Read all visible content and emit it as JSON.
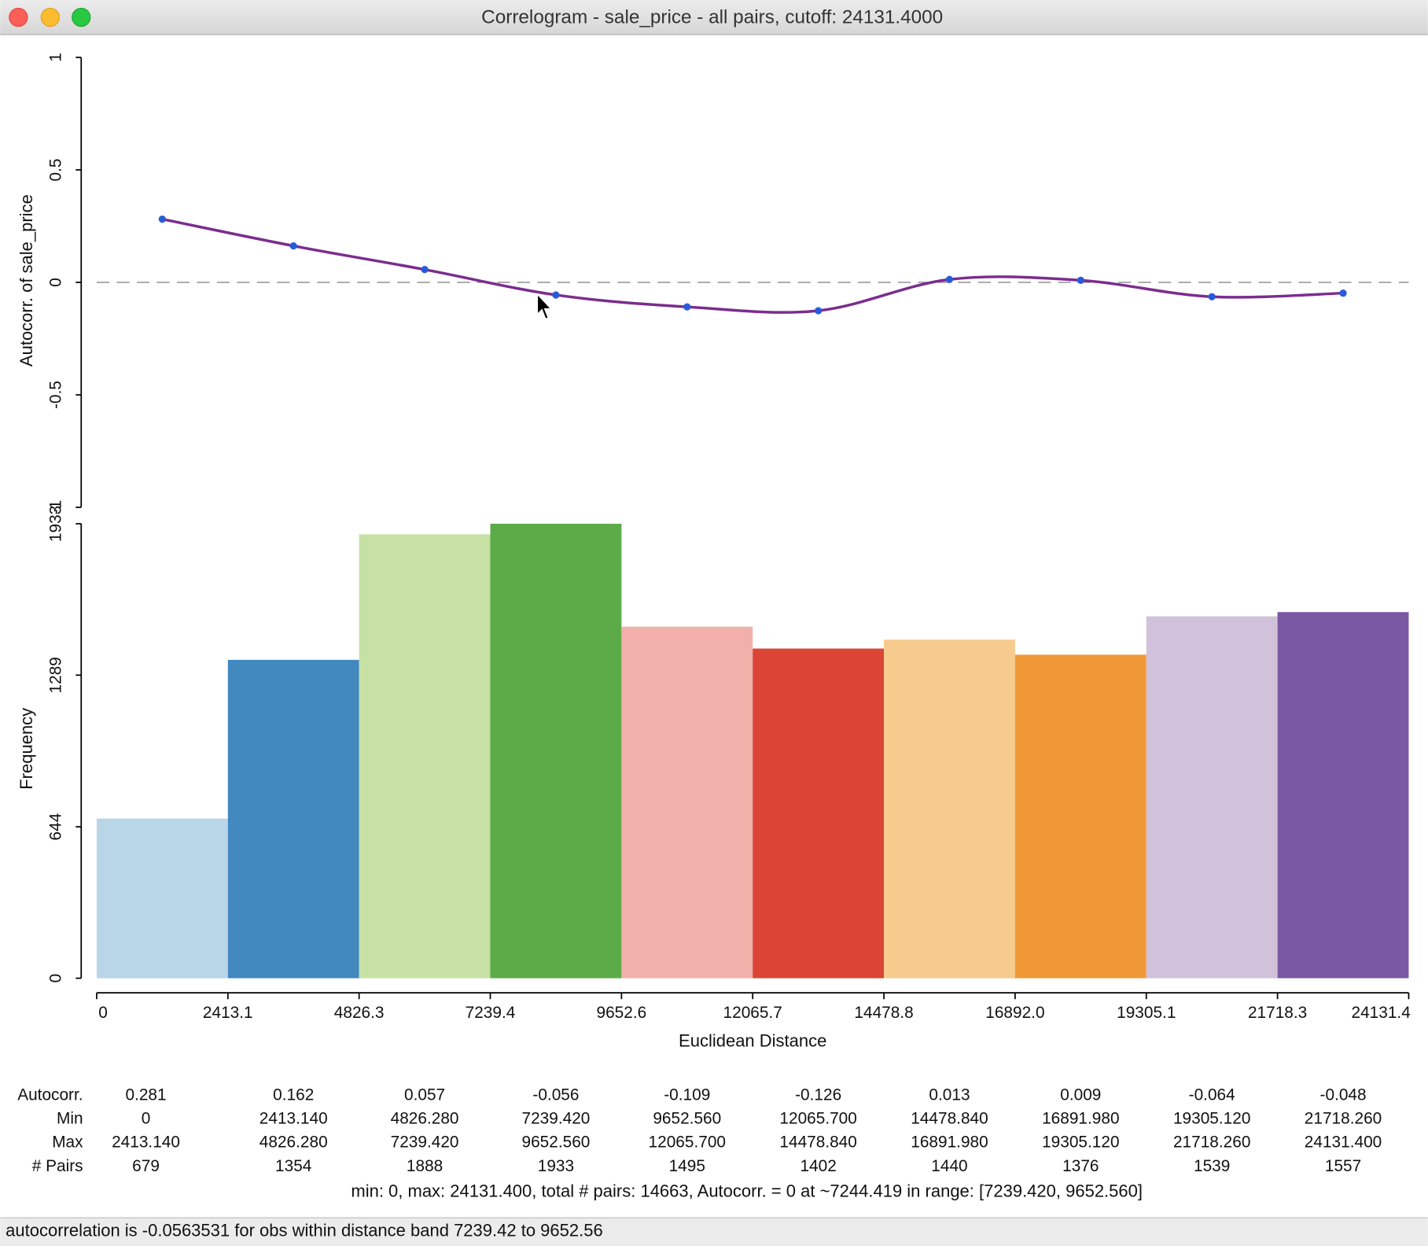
{
  "window": {
    "title": "Correlogram - sale_price - all pairs, cutoff: 24131.4000"
  },
  "chart_data": [
    {
      "type": "line",
      "y_label": "Autocorr. of sale_price",
      "values": [
        0.281,
        0.162,
        0.057,
        -0.056,
        -0.109,
        -0.126,
        0.013,
        0.009,
        -0.064,
        -0.048
      ],
      "color": "#7b2d8e",
      "point_color": "#2a5bd7",
      "ylim": [
        -1,
        1
      ],
      "yticks": [
        -1,
        -0.5,
        0,
        0.5,
        1
      ]
    },
    {
      "type": "histogram",
      "y_label": "Frequency",
      "x_label": "Euclidean Distance",
      "bins": [
        0,
        2413.14,
        4826.28,
        7239.42,
        9652.56,
        12065.7,
        14478.84,
        16891.98,
        19305.12,
        21718.26,
        24131.4
      ],
      "values": [
        679,
        1354,
        1888,
        1933,
        1495,
        1402,
        1440,
        1376,
        1539,
        1557
      ],
      "colors": [
        "#b9d5e8",
        "#4189be",
        "#c6e1a3",
        "#5cab48",
        "#f2b0ab",
        "#da4535",
        "#f6cb8d",
        "#f09838",
        "#d1c1da",
        "#7b58a3"
      ],
      "xlim": [
        0,
        24131.4
      ],
      "xticks": [
        0,
        {
          "value": 2413.14,
          "label": "2413.1"
        },
        {
          "value": 4826.28,
          "label": "4826.3"
        },
        {
          "value": 7239.42,
          "label": "7239.4"
        },
        {
          "value": 9652.56,
          "label": "9652.6"
        },
        12065.7,
        {
          "value": 14478.84,
          "label": "14478.8"
        },
        {
          "value": 16891.98,
          "label": "16892.0"
        },
        {
          "value": 19305.12,
          "label": "19305.1"
        },
        {
          "value": 21718.26,
          "label": "21718.3"
        },
        24131.4
      ],
      "ylim": [
        0,
        1933
      ],
      "yticks": [
        0,
        644,
        1289,
        1933
      ]
    }
  ],
  "table": {
    "rows": [
      {
        "label": "Autocorr.",
        "cells": [
          "0.281",
          "0.162",
          "0.057",
          "-0.056",
          "-0.109",
          "-0.126",
          "0.013",
          "0.009",
          "-0.064",
          "-0.048"
        ]
      },
      {
        "label": "Min",
        "cells": [
          "0",
          "2413.140",
          "4826.280",
          "7239.420",
          "9652.560",
          "12065.700",
          "14478.840",
          "16891.980",
          "19305.120",
          "21718.260"
        ]
      },
      {
        "label": "Max",
        "cells": [
          "2413.140",
          "4826.280",
          "7239.420",
          "9652.560",
          "12065.700",
          "14478.840",
          "16891.980",
          "19305.120",
          "21718.260",
          "24131.400"
        ]
      },
      {
        "label": "# Pairs",
        "cells": [
          "679",
          "1354",
          "1888",
          "1933",
          "1495",
          "1402",
          "1440",
          "1376",
          "1539",
          "1557"
        ]
      }
    ]
  },
  "summary": "min: 0, max: 24131.400, total # pairs: 14663, Autocorr. = 0 at ~7244.419 in range: [7239.420, 9652.560]",
  "status_bar": "autocorrelation is -0.0563531 for obs within distance band 7239.42 to 9652.56"
}
